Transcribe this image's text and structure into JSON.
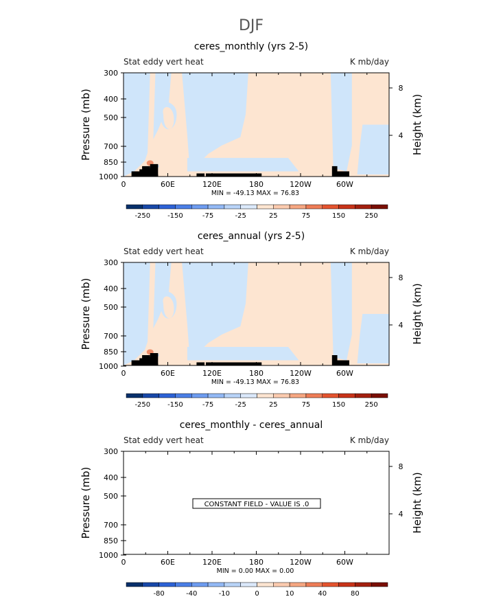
{
  "page_title": "DJF",
  "chart_data": [
    {
      "type": "heatmap",
      "title": "ceres_monthly (yrs 2-5)",
      "subtitle_left": "Stat eddy vert heat",
      "subtitle_right": "K mb/day",
      "ylabel": "Pressure (mb)",
      "ylabel_right": "Height (km)",
      "y_ticks": [
        "300",
        "400",
        "500",
        "700",
        "850",
        "1000"
      ],
      "y_right_ticks": [
        "8",
        "4"
      ],
      "x_ticks": [
        "0",
        "60E",
        "120E",
        "180",
        "120W",
        "60W"
      ],
      "stats": "MIN = -49.13   MAX =  76.83",
      "colorbar_labels": [
        "-250",
        "-150",
        "-75",
        "-25",
        "25",
        "75",
        "150",
        "250"
      ],
      "constant_field": false
    },
    {
      "type": "heatmap",
      "title": "ceres_annual (yrs 2-5)",
      "subtitle_left": "Stat eddy vert heat",
      "subtitle_right": "K mb/day",
      "ylabel": "Pressure (mb)",
      "ylabel_right": "Height (km)",
      "y_ticks": [
        "300",
        "400",
        "500",
        "700",
        "850",
        "1000"
      ],
      "y_right_ticks": [
        "8",
        "4"
      ],
      "x_ticks": [
        "0",
        "60E",
        "120E",
        "180",
        "120W",
        "60W"
      ],
      "stats": "MIN = -49.13   MAX =  76.83",
      "colorbar_labels": [
        "-250",
        "-150",
        "-75",
        "-25",
        "25",
        "75",
        "150",
        "250"
      ],
      "constant_field": false
    },
    {
      "type": "heatmap",
      "title": "ceres_monthly - ceres_annual",
      "subtitle_left": "Stat eddy vert heat",
      "subtitle_right": "K mb/day",
      "ylabel": "Pressure (mb)",
      "ylabel_right": "Height (km)",
      "y_ticks": [
        "300",
        "400",
        "500",
        "700",
        "850",
        "1000"
      ],
      "y_right_ticks": [
        "8",
        "4"
      ],
      "x_ticks": [
        "0",
        "60E",
        "120E",
        "180",
        "120W",
        "60W"
      ],
      "stats": "MIN =     0.00   MAX =    0.00",
      "constant_text": "CONSTANT FIELD - VALUE IS .0",
      "colorbar_labels": [
        "-80",
        "-40",
        "-10",
        "0",
        "10",
        "40",
        "80"
      ],
      "constant_field": true
    }
  ],
  "colors": {
    "neg_light": "#cfe5fa",
    "pos_light": "#fde5d1",
    "pos_mid": "#f8c6a6",
    "pos_strong": "#f08f6c",
    "neg_mid": "#a9cdf1",
    "topography": "#000000",
    "colorbar": [
      "#08306b",
      "#1848a8",
      "#2d62d6",
      "#4b7fe6",
      "#6e9cf0",
      "#93b9f5",
      "#b9d4f8",
      "#dbe9fb",
      "#fde5d1",
      "#fbcbaf",
      "#f6a782",
      "#ee7d57",
      "#e4542f",
      "#c83319",
      "#a3200f",
      "#7a0f05"
    ]
  }
}
